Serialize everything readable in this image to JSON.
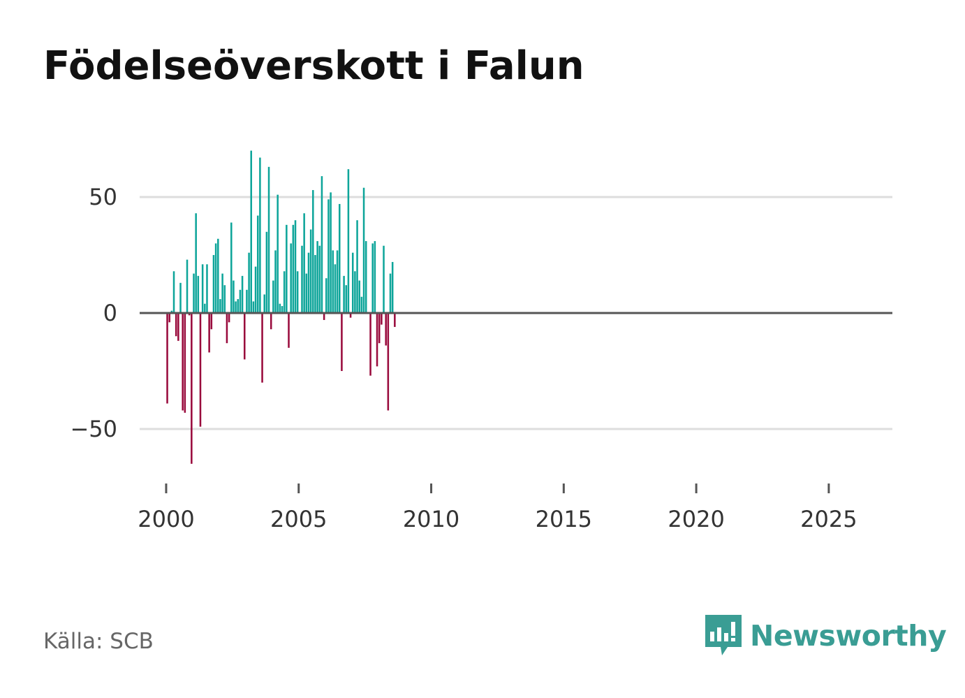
{
  "title": "Födelseöverskott i Falun",
  "source": "Källa: SCB",
  "logo": {
    "name": "Newsworthy",
    "icon": "bar-chart-speech-bubble-icon"
  },
  "colors": {
    "positive": "#0ea59a",
    "negative": "#990a3c",
    "gridline": "#dddddd",
    "zero_line": "#555555",
    "text": "#333333"
  },
  "chart_data": {
    "type": "bar",
    "title": "Födelseöverskott i Falun",
    "xlabel": "",
    "ylabel": "",
    "frequency": "monthly",
    "start": "2000-01",
    "ylim": [
      -70,
      72
    ],
    "xlim": [
      1999.0,
      2027.4
    ],
    "yticks": [
      {
        "value": 50,
        "label": "50"
      },
      {
        "value": 0,
        "label": "0"
      },
      {
        "value": -50,
        "label": "−50"
      }
    ],
    "xticks": [
      {
        "value": 2000,
        "label": "2000"
      },
      {
        "value": 2005,
        "label": "2005"
      },
      {
        "value": 2010,
        "label": "2010"
      },
      {
        "value": 2015,
        "label": "2015"
      },
      {
        "value": 2020,
        "label": "2020"
      },
      {
        "value": 2025,
        "label": "2025"
      }
    ],
    "grid": true,
    "values": [
      -39,
      -4,
      1,
      18,
      -10,
      -12,
      13,
      -42,
      -43,
      23,
      -1,
      -65,
      17,
      43,
      16,
      -49,
      21,
      4,
      21,
      -17,
      -7,
      25,
      30,
      32,
      6,
      17,
      12,
      -13,
      -4,
      39,
      14,
      5,
      6,
      10,
      16,
      -20,
      10,
      26,
      70,
      5,
      20,
      42,
      67,
      -30,
      8,
      35,
      63,
      -7,
      14,
      27,
      51,
      4,
      3,
      18,
      38,
      -15,
      30,
      38,
      40,
      18,
      0,
      29,
      43,
      17,
      26,
      36,
      53,
      25,
      31,
      29,
      59,
      -3,
      15,
      49,
      52,
      27,
      21,
      27,
      47,
      -25,
      16,
      12,
      62,
      -2,
      26,
      18,
      40,
      14,
      7,
      54,
      31,
      0,
      -27,
      30,
      31,
      -23,
      -13,
      -5,
      29,
      -14,
      -42,
      17,
      22,
      -6
    ]
  }
}
